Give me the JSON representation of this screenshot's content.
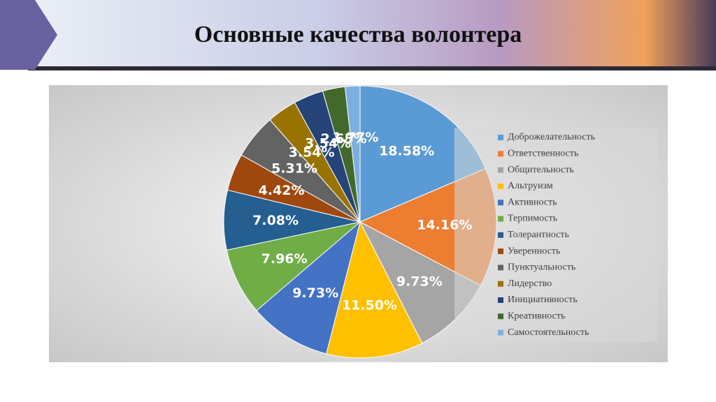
{
  "chart_data": {
    "type": "pie",
    "title": "Основные качества волонтера",
    "categories": [
      "Доброжелательность",
      "Ответственность",
      "Общительность",
      "Альтруизм",
      "Активность",
      "Терпимость",
      "Толерантность",
      "Уверенность",
      "Пунктуальность",
      "Лидерство",
      "Инициативность",
      "Креативность",
      "Самостоятельность"
    ],
    "values": [
      18.58,
      14.16,
      9.73,
      11.5,
      9.73,
      7.96,
      7.08,
      4.42,
      5.31,
      3.54,
      3.54,
      2.65,
      1.77
    ],
    "value_labels": [
      "18.58%",
      "14.16%",
      "9.73%",
      "11.50%",
      "9.73%",
      "7.96%",
      "7.08%",
      "4.42%",
      "5.31%",
      "3.54%",
      "3.54%",
      "2.65%",
      "1.77%"
    ],
    "colors": [
      "#5b9bd5",
      "#ed7d31",
      "#a5a5a5",
      "#ffc000",
      "#4472c4",
      "#70ad47",
      "#255e91",
      "#9e480e",
      "#636363",
      "#997300",
      "#264478",
      "#43682b",
      "#7cafdd"
    ],
    "legend": "right"
  }
}
